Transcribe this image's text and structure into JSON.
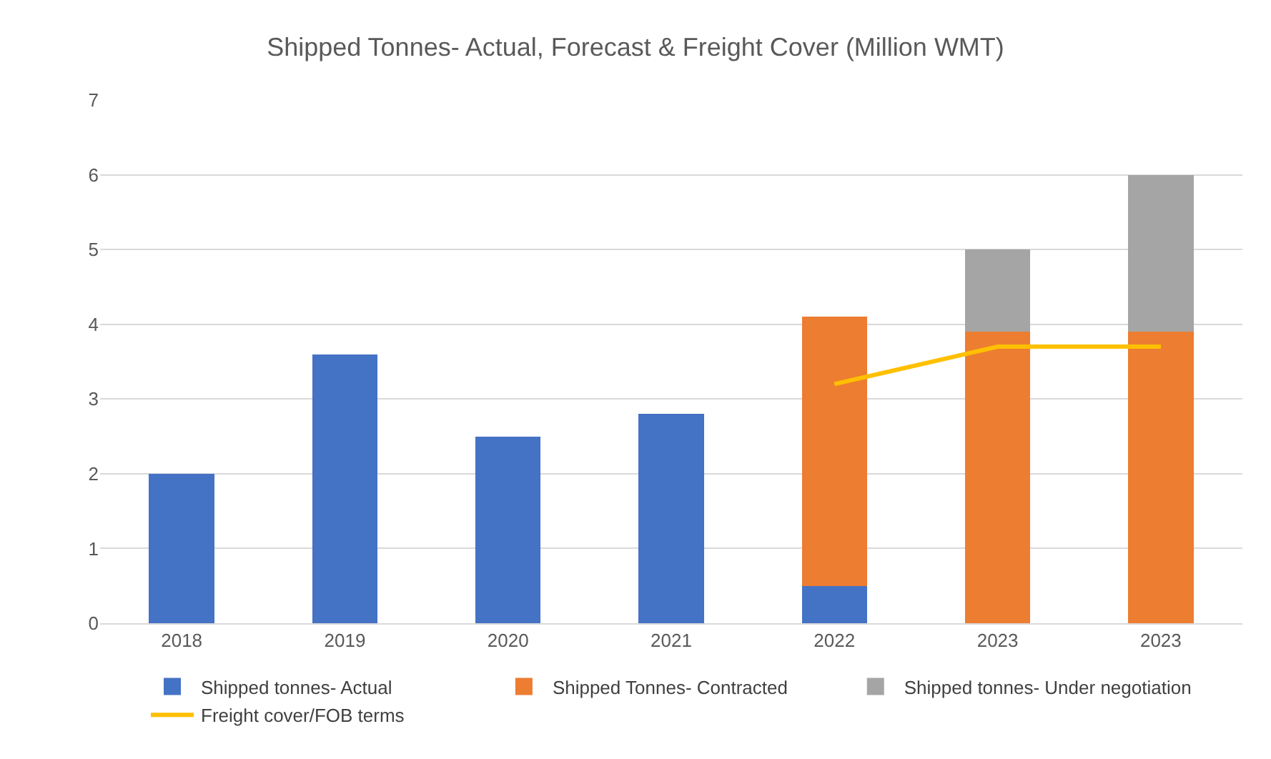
{
  "chart_data": {
    "type": "bar",
    "title": "Shipped Tonnes- Actual, Forecast & Freight Cover (Million WMT)",
    "categories": [
      "2018",
      "2019",
      "2020",
      "2021",
      "2022",
      "2023",
      "2023"
    ],
    "stacked": true,
    "series": [
      {
        "name": "Shipped tonnes- Actual",
        "color": "#4472c4",
        "values": [
          2.0,
          3.6,
          2.5,
          2.8,
          0.5,
          null,
          null
        ]
      },
      {
        "name": "Shipped Tonnes- Contracted",
        "color": "#ed7d31",
        "values": [
          null,
          null,
          null,
          null,
          3.6,
          3.9,
          3.9
        ]
      },
      {
        "name": "Shipped tonnes- Under negotiation",
        "color": "#a5a5a5",
        "values": [
          null,
          null,
          null,
          null,
          null,
          1.1,
          2.1
        ]
      },
      {
        "name": "Freight cover/FOB terms",
        "color": "#ffc000",
        "type": "line",
        "values": [
          null,
          null,
          null,
          null,
          3.2,
          3.7,
          3.7
        ]
      }
    ],
    "ylim": [
      0,
      7
    ],
    "yticks": [
      0,
      1,
      2,
      3,
      4,
      5,
      6,
      7
    ],
    "grid": "y",
    "legend": "bottom"
  }
}
